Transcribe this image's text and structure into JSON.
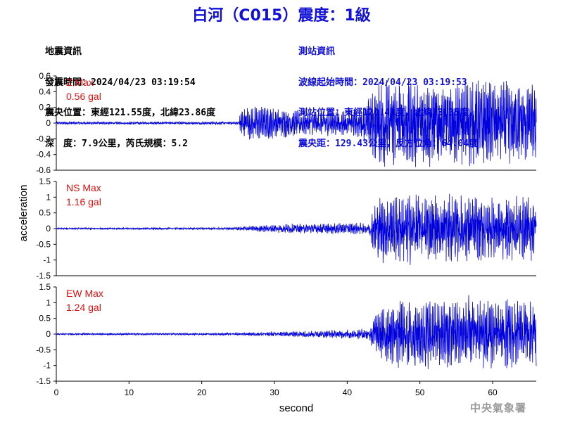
{
  "title": "白河（C015）震度：1級",
  "quake_info": {
    "heading": "地震資訊",
    "time": "發震時間：2024/04/23 03:19:54",
    "epicenter": "震央位置：東經121.55度，北緯23.86度",
    "depth_magnitude": "深　度：7.9公里，芮氏規模：5.2"
  },
  "station_info": {
    "heading": "測站資訊",
    "onset_time": "波線起始時間：2024/04/23 03:19:53",
    "location": "測站位置：東經120.41度，北緯23.35度",
    "distance_azimuth": "震央距：129.43公里，反方位角：64.04度"
  },
  "footer": "中央氣象署",
  "colors": {
    "title": "#1010d8",
    "trace": "#0000dd",
    "max_label": "#e01010"
  },
  "chart_data": [
    {
      "type": "line",
      "component": "Z",
      "max_label": "Z Max",
      "max_value": "0.56 gal",
      "ylim": [
        -0.6,
        0.6
      ],
      "yticks": [
        -0.6,
        -0.4,
        -0.2,
        0,
        0.2,
        0.4,
        0.6
      ],
      "ytick_labels": [
        "-0.6",
        "-0.4",
        "-0.2",
        "0",
        "0.2",
        "0.4",
        "0.6"
      ],
      "envelope_time": [
        0,
        25,
        25.5,
        30,
        34,
        42,
        43.5,
        45,
        55,
        66
      ],
      "envelope_amp": [
        0.015,
        0.015,
        0.18,
        0.16,
        0.12,
        0.15,
        0.35,
        0.45,
        0.45,
        0.4
      ],
      "peak": 0.56
    },
    {
      "type": "line",
      "component": "NS",
      "max_label": "NS Max",
      "max_value": "1.16 gal",
      "ylim": [
        -1.5,
        1.5
      ],
      "yticks": [
        -1.5,
        -1,
        -0.5,
        0,
        0.5,
        1,
        1.5
      ],
      "ytick_labels": [
        "-1.5",
        "-1",
        "-0.5",
        "0",
        "0.5",
        "1",
        "1.5"
      ],
      "envelope_time": [
        0,
        24,
        27,
        32,
        43,
        43.8,
        45,
        55,
        66
      ],
      "envelope_amp": [
        0.02,
        0.03,
        0.07,
        0.12,
        0.15,
        0.7,
        0.9,
        0.85,
        0.8
      ],
      "peak": 1.16
    },
    {
      "type": "line",
      "component": "EW",
      "max_label": "EW Max",
      "max_value": "1.24 gal",
      "ylim": [
        -1.5,
        1.5
      ],
      "yticks": [
        -1.5,
        -1,
        -0.5,
        0,
        0.5,
        1,
        1.5
      ],
      "ytick_labels": [
        "-1.5",
        "-1",
        "-0.5",
        "0",
        "0.5",
        "1",
        "1.5"
      ],
      "envelope_time": [
        0,
        24,
        30,
        38,
        43,
        43.8,
        46,
        55,
        66
      ],
      "envelope_amp": [
        0.02,
        0.03,
        0.06,
        0.1,
        0.15,
        0.6,
        0.85,
        0.9,
        0.85
      ],
      "peak": 1.24
    }
  ],
  "xaxis": {
    "label": "second",
    "xlim": [
      0,
      66
    ],
    "xticks": [
      0,
      10,
      20,
      30,
      40,
      50,
      60
    ],
    "xtick_labels": [
      "0",
      "10",
      "20",
      "30",
      "40",
      "50",
      "60"
    ]
  },
  "yaxis": {
    "label": "acceleration"
  }
}
